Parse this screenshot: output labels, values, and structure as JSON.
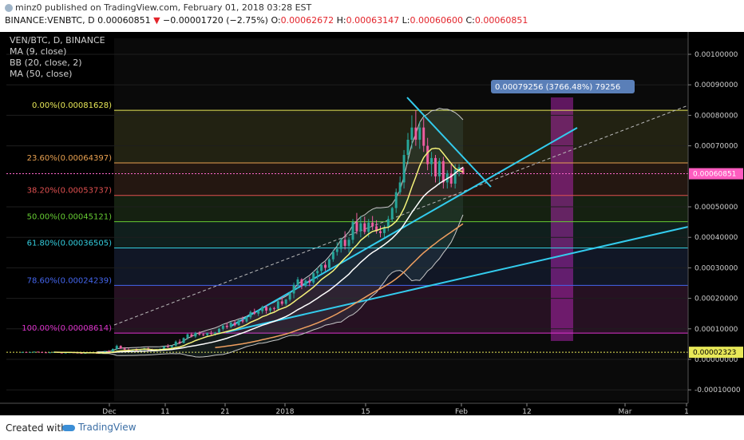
{
  "header": {
    "author": "minz0",
    "published_text": "published on TradingView.com, February 01, 2018 03:28 EST",
    "symbol": "BINANCE:VENBTC, D",
    "last": "0.00060851",
    "arrow": "▼",
    "change": "−0.00001720 (−2.75%)",
    "o_label": "O:",
    "o_value": "0.00062672",
    "h_label": "H:",
    "h_value": "0.00063147",
    "l_label": "L:",
    "l_value": "0.00060600",
    "c_label": "C:",
    "c_value": "0.00060851"
  },
  "legend": {
    "title": "VEN/BTC, D, BINANCE",
    "ma9": "MA (9, close)",
    "bb": "BB (20, close, 2)",
    "ma50": "MA (50, close)"
  },
  "footer": {
    "created_with": "Created with",
    "brand": "TradingView"
  },
  "colors": {
    "background": "#000000",
    "up": "#26a69a",
    "down": "#ef5ca0",
    "ma9": "#f5f37a",
    "ma20": "#ffffff",
    "ma50": "#f0a060",
    "trend": "#33ccee"
  },
  "chart_data": {
    "type": "candlestick",
    "x_tick_labels": [
      "Dec",
      "11",
      "21",
      "2018",
      "15",
      "Feb",
      "12",
      "Mar",
      "1"
    ],
    "y_tick_labels": [
      "0.00100000",
      "0.00090000",
      "0.00080000",
      "0.00070000",
      "0.00050000",
      "0.00040000",
      "0.00030000",
      "0.00020000",
      "0.00010000",
      "0.00000000",
      "-0.00010000"
    ],
    "ylim": [
      -0.00014,
      0.00108
    ],
    "last_price_label": "0.00060851",
    "low_price_label": "0.00002323",
    "measure_label": "0.00079256 (3766.48%) 79256",
    "fib_levels": [
      {
        "label": "0.00%(0.00081628)",
        "value": 0.00081628,
        "color": "#e8e858"
      },
      {
        "label": "23.60%(0.00064397)",
        "value": 0.00064397,
        "color": "#e8a050"
      },
      {
        "label": "38.20%(0.00053737)",
        "value": 0.00053737,
        "color": "#e05050"
      },
      {
        "label": "50.00%(0.00045121)",
        "value": 0.00045121,
        "color": "#66cc33"
      },
      {
        "label": "61.80%(0.00036505)",
        "value": 0.00036505,
        "color": "#33ccdd"
      },
      {
        "label": "78.60%(0.00024239)",
        "value": 0.00024239,
        "color": "#4466ee"
      },
      {
        "label": "100.00%(0.00008614)",
        "value": 8.614e-05,
        "color": "#dd33cc"
      }
    ],
    "candles": [
      [
        2.4e-05,
        2.5e-05,
        2.3e-05,
        2.4e-05
      ],
      [
        2.4e-05,
        2.5e-05,
        2.3e-05,
        2.3e-05
      ],
      [
        2.3e-05,
        2.4e-05,
        2.2e-05,
        2.4e-05
      ],
      [
        2.4e-05,
        2.6e-05,
        2.3e-05,
        2.5e-05
      ],
      [
        2.5e-05,
        2.6e-05,
        2.4e-05,
        2.4e-05
      ],
      [
        2.4e-05,
        2.5e-05,
        2.2e-05,
        2.3e-05
      ],
      [
        2.3e-05,
        2.4e-05,
        2.1e-05,
        2.2e-05
      ],
      [
        2.2e-05,
        2.4e-05,
        2.1e-05,
        2.3e-05
      ],
      [
        2.3e-05,
        2.5e-05,
        2.2e-05,
        2.4e-05
      ],
      [
        2.4e-05,
        2.5e-05,
        2.2e-05,
        2.2e-05
      ],
      [
        2.2e-05,
        2.3e-05,
        2e-05,
        2.1e-05
      ],
      [
        2.1e-05,
        2.3e-05,
        2e-05,
        2.2e-05
      ],
      [
        2.2e-05,
        2.4e-05,
        2.1e-05,
        2.3e-05
      ],
      [
        2.3e-05,
        2.4e-05,
        2.1e-05,
        2.2e-05
      ],
      [
        2.2e-05,
        2.3e-05,
        2e-05,
        2.1e-05
      ],
      [
        2.1e-05,
        2.2e-05,
        1.9e-05,
        2e-05
      ],
      [
        2e-05,
        2.2e-05,
        1.9e-05,
        2.1e-05
      ],
      [
        2.1e-05,
        2.3e-05,
        2e-05,
        2.2e-05
      ],
      [
        2.2e-05,
        2.3e-05,
        2e-05,
        2.1e-05
      ],
      [
        2.1e-05,
        2.2e-05,
        1.9e-05,
        2e-05
      ],
      [
        2e-05,
        2.2e-05,
        1.9e-05,
        2.1e-05
      ],
      [
        2.1e-05,
        2.8e-05,
        2e-05,
        2.7e-05
      ],
      [
        2.7e-05,
        3e-05,
        2.4e-05,
        2.5e-05
      ],
      [
        2.5e-05,
        3.6e-05,
        2.4e-05,
        3.4e-05
      ],
      [
        3.4e-05,
        4.8e-05,
        3e-05,
        4.4e-05
      ],
      [
        4.4e-05,
        4.6e-05,
        3.4e-05,
        3.6e-05
      ],
      [
        3.6e-05,
        4e-05,
        3e-05,
        3.2e-05
      ],
      [
        3.2e-05,
        3.8e-05,
        2.6e-05,
        2.8e-05
      ],
      [
        2.8e-05,
        3.3e-05,
        2.4e-05,
        3.1e-05
      ],
      [
        3.1e-05,
        3.6e-05,
        2.8e-05,
        3e-05
      ],
      [
        3e-05,
        3.4e-05,
        2.6e-05,
        3.3e-05
      ],
      [
        3.3e-05,
        3.8e-05,
        3e-05,
        3.6e-05
      ],
      [
        3.6e-05,
        4e-05,
        2.9e-05,
        3.1e-05
      ],
      [
        3.1e-05,
        3.5e-05,
        2.7e-05,
        2.9e-05
      ],
      [
        2.9e-05,
        3.4e-05,
        2.6e-05,
        3.2e-05
      ],
      [
        3.2e-05,
        3.6e-05,
        3e-05,
        3.4e-05
      ],
      [
        3.4e-05,
        4.5e-05,
        3.2e-05,
        4.2e-05
      ],
      [
        4.2e-05,
        5e-05,
        3.8e-05,
        4e-05
      ],
      [
        4e-05,
        4.6e-05,
        3.6e-05,
        4.5e-05
      ],
      [
        4.5e-05,
        6.2e-05,
        4.3e-05,
        5.8e-05
      ],
      [
        5.8e-05,
        6.6e-05,
        5e-05,
        5.4e-05
      ],
      [
        5.4e-05,
        7.2e-05,
        5.2e-05,
        7e-05
      ],
      [
        7e-05,
        8.5e-05,
        6.5e-05,
        8.2e-05
      ],
      [
        8.2e-05,
        8.8e-05,
        7.2e-05,
        7.5e-05
      ],
      [
        7.5e-05,
        9e-05,
        7e-05,
        8.7e-05
      ],
      [
        8.7e-05,
        9.2e-05,
        7.8e-05,
        8.2e-05
      ],
      [
        8.2e-05,
        8.6e-05,
        7.6e-05,
        8e-05
      ],
      [
        8e-05,
        8.8e-05,
        7.6e-05,
        8.6e-05
      ],
      [
        8.6e-05,
        9.4e-05,
        8e-05,
        8.4e-05
      ],
      [
        8.4e-05,
        9e-05,
        7.8e-05,
        8.8e-05
      ],
      [
        8.8e-05,
        0.000104,
        8.6e-05,
        0.0001
      ],
      [
        0.0001,
        0.000116,
        9.4e-05,
        0.00011
      ],
      [
        0.00011,
        0.00012,
        0.0001,
        0.000106
      ],
      [
        0.000106,
        0.000124,
        0.000102,
        0.00012
      ],
      [
        0.00012,
        0.000128,
        0.000108,
        0.000112
      ],
      [
        0.000112,
        0.000132,
        0.00011,
        0.000128
      ],
      [
        0.000128,
        0.00014,
        0.000118,
        0.000124
      ],
      [
        0.000124,
        0.000142,
        0.00012,
        0.000138
      ],
      [
        0.000138,
        0.00016,
        0.000132,
        0.000155
      ],
      [
        0.000155,
        0.000166,
        0.000146,
        0.00015
      ],
      [
        0.00015,
        0.000162,
        0.000142,
        0.000158
      ],
      [
        0.000158,
        0.000176,
        0.00015,
        0.000172
      ],
      [
        0.000172,
        0.000178,
        0.00015,
        0.00016
      ],
      [
        0.00016,
        0.000172,
        0.000152,
        0.000168
      ],
      [
        0.000168,
        0.000172,
        0.000158,
        0.000166
      ],
      [
        0.000166,
        0.000196,
        0.00016,
        0.00019
      ],
      [
        0.00019,
        0.000205,
        0.000176,
        0.000182
      ],
      [
        0.000182,
        0.000198,
        0.000176,
        0.000196
      ],
      [
        0.000196,
        0.000222,
        0.00019,
        0.000216
      ],
      [
        0.000216,
        0.000252,
        0.0002,
        0.000244
      ],
      [
        0.000244,
        0.00027,
        0.000232,
        0.000262
      ],
      [
        0.000262,
        0.000266,
        0.00023,
        0.00024
      ],
      [
        0.00024,
        0.000262,
        0.000236,
        0.000258
      ],
      [
        0.000258,
        0.00027,
        0.00024,
        0.000252
      ],
      [
        0.000252,
        0.000288,
        0.000246,
        0.000282
      ],
      [
        0.000282,
        0.0003,
        0.000262,
        0.00029
      ],
      [
        0.00029,
        0.000316,
        0.000282,
        0.00031
      ],
      [
        0.00031,
        0.00032,
        0.00029,
        0.0003
      ],
      [
        0.0003,
        0.000332,
        0.000296,
        0.000328
      ],
      [
        0.000328,
        0.00036,
        0.00032,
        0.000352
      ],
      [
        0.000352,
        0.000384,
        0.00034,
        0.000362
      ],
      [
        0.000362,
        0.000398,
        0.00035,
        0.000392
      ],
      [
        0.000392,
        0.00042,
        0.00036,
        0.000372
      ],
      [
        0.000372,
        0.0004,
        0.00035,
        0.000392
      ],
      [
        0.000392,
        0.00046,
        0.00038,
        0.00045
      ],
      [
        0.00045,
        0.00048,
        0.00041,
        0.00042
      ],
      [
        0.00042,
        0.00047,
        0.0004,
        0.000446
      ],
      [
        0.000446,
        0.000468,
        0.00041,
        0.000418
      ],
      [
        0.000418,
        0.00046,
        0.0004,
        0.000448
      ],
      [
        0.000448,
        0.00047,
        0.000424,
        0.000436
      ],
      [
        0.000436,
        0.000456,
        0.000412,
        0.00042
      ],
      [
        0.00042,
        0.000438,
        0.0004,
        0.000414
      ],
      [
        0.000414,
        0.00044,
        0.0004,
        0.000432
      ],
      [
        0.000432,
        0.00047,
        0.00042,
        0.00046
      ],
      [
        0.00046,
        0.0005,
        0.000452,
        0.000496
      ],
      [
        0.000496,
        0.00056,
        0.00048,
        0.000548
      ],
      [
        0.000548,
        0.0006,
        0.00054,
        0.00058
      ],
      [
        0.00058,
        0.000686,
        0.00056,
        0.00067
      ],
      [
        0.00067,
        0.000742,
        0.00064,
        0.00072
      ],
      [
        0.00072,
        0.0008,
        0.00069,
        0.00076
      ],
      [
        0.00076,
        0.000816,
        0.0007,
        0.00072
      ],
      [
        0.00072,
        0.00078,
        0.00069,
        0.00076
      ],
      [
        0.00076,
        0.00079,
        0.00068,
        0.0007
      ],
      [
        0.0007,
        0.000726,
        0.00062,
        0.00064
      ],
      [
        0.00064,
        0.00068,
        0.0006,
        0.00066
      ],
      [
        0.00066,
        0.00067,
        0.00058,
        0.0006
      ],
      [
        0.0006,
        0.00066,
        0.000572,
        0.00065
      ],
      [
        0.00065,
        0.000664,
        0.00056,
        0.00058
      ],
      [
        0.00058,
        0.00062,
        0.00056,
        0.00061
      ],
      [
        0.00061,
        0.00064,
        0.000564,
        0.000576
      ],
      [
        0.000576,
        0.00064,
        0.00056,
        0.000622
      ],
      [
        0.000622,
        0.00064,
        0.0006,
        0.00063
      ],
      [
        0.00062672,
        0.00063147,
        0.000606,
        0.00060851
      ]
    ]
  }
}
